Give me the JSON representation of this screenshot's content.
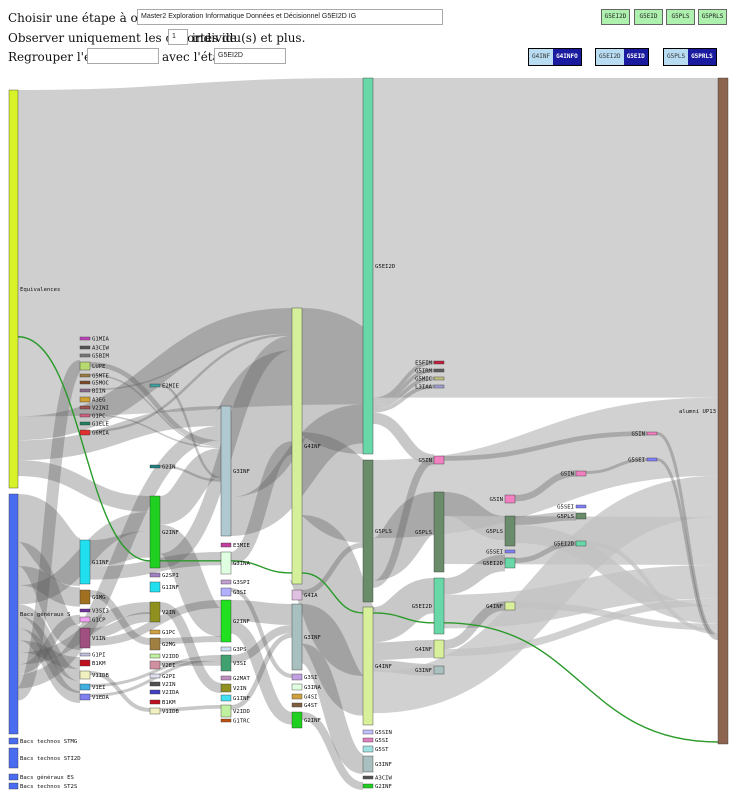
{
  "controls": {
    "step_label": "Choisir une étape à observer :",
    "step_value": "Master2 Exploration Informatique Données et Décisionnel G5EI2D IG",
    "cohort_label_before": "Observer uniquement les cohortes de",
    "cohort_value": "1",
    "cohort_label_after": "individu(s) et plus.",
    "group_label": "Regrouper l'étape",
    "group_value": "",
    "with_label": "avec l'étape",
    "with_value": "G5EI2D"
  },
  "step_buttons": [
    "G5EI2D",
    "G5EID",
    "G5PLS",
    "G5PRLS"
  ],
  "pairs": [
    {
      "a": "G4INF",
      "b": "G4INFO"
    },
    {
      "a": "G5EI2D",
      "b": "G5EID"
    },
    {
      "a": "G5PLS",
      "b": "G5PRLS"
    }
  ],
  "nodes": [
    {
      "id": "equiv",
      "label": "Equivalences",
      "color": "#d8f22a"
    },
    {
      "id": "bgen",
      "label": "Bacs généraux S",
      "color": "#4a6cf0"
    },
    {
      "id": "btst",
      "label": "Bacs technos STMG",
      "color": "#4a6cf0"
    },
    {
      "id": "bsti",
      "label": "Bacs technos STI2D",
      "color": "#4a6cf0"
    },
    {
      "id": "bes",
      "label": "Bacs généraux ES",
      "color": "#4a6cf0"
    },
    {
      "id": "bst2s",
      "label": "Bacs technos ST2S",
      "color": "#4a6cf0"
    },
    {
      "id": "c1a",
      "label": "G1MIA",
      "color": "#c040c0"
    },
    {
      "id": "c1b",
      "label": "A3CIW",
      "color": "#555555"
    },
    {
      "id": "c1c",
      "label": "G5BIM",
      "color": "#777777"
    },
    {
      "id": "c1d",
      "label": "LUPE",
      "color": "#b8d870"
    },
    {
      "id": "c1e",
      "label": "G5MTE",
      "color": "#9a7a40"
    },
    {
      "id": "c1f",
      "label": "G5MOC",
      "color": "#7a4a2a"
    },
    {
      "id": "c1g",
      "label": "BIIN",
      "color": "#8a6a8a"
    },
    {
      "id": "c1h",
      "label": "A3EG",
      "color": "#d0a030"
    },
    {
      "id": "c1i",
      "label": "V2INI",
      "color": "#a05050"
    },
    {
      "id": "c1j",
      "label": "G1PC",
      "color": "#d06080"
    },
    {
      "id": "c1k",
      "label": "G1ELE",
      "color": "#208060"
    },
    {
      "id": "c1l",
      "label": "G6MIA",
      "color": "#e03030"
    },
    {
      "id": "c1m",
      "label": "G1INF",
      "color": "#20e0f0"
    },
    {
      "id": "c1n",
      "label": "G1MG",
      "color": "#a07020"
    },
    {
      "id": "c1o",
      "label": "V3SI3",
      "color": "#7030a0"
    },
    {
      "id": "c1p",
      "label": "G1CP",
      "color": "#f0a0f0"
    },
    {
      "id": "c1q",
      "label": "V1IN",
      "color": "#a05080"
    },
    {
      "id": "c1r",
      "label": "G1PI",
      "color": "#c0c0e0"
    },
    {
      "id": "c1s",
      "label": "B1KM",
      "color": "#c01020"
    },
    {
      "id": "c1t",
      "label": "V1IDB",
      "color": "#f0f0c0"
    },
    {
      "id": "c1u",
      "label": "V1EI",
      "color": "#40b0e0"
    },
    {
      "id": "c1v",
      "label": "V1EDA",
      "color": "#8080f0"
    },
    {
      "id": "c2a",
      "label": "E2MIE",
      "color": "#40a0a0"
    },
    {
      "id": "c2b",
      "label": "G2IN",
      "color": "#208080"
    },
    {
      "id": "c2c",
      "label": "G2INF",
      "color": "#20d020"
    },
    {
      "id": "c2d",
      "label": "G2SPI",
      "color": "#a080c0"
    },
    {
      "id": "c2e",
      "label": "G1INF",
      "color": "#20e0f0"
    },
    {
      "id": "c2f",
      "label": "V2IN",
      "color": "#909020"
    },
    {
      "id": "c2g",
      "label": "G1PC",
      "color": "#d0a040"
    },
    {
      "id": "c2h",
      "label": "G2MG",
      "color": "#a08040"
    },
    {
      "id": "c2i",
      "label": "V2IDD",
      "color": "#c0f0a0"
    },
    {
      "id": "c2j",
      "label": "V2EI",
      "color": "#d090a0"
    },
    {
      "id": "c2k",
      "label": "G2PI",
      "color": "#e0e0f0"
    },
    {
      "id": "c2l",
      "label": "V2IN",
      "color": "#505050"
    },
    {
      "id": "c2m",
      "label": "V2IDA",
      "color": "#4040c0"
    },
    {
      "id": "c2n",
      "label": "B1KM",
      "color": "#c01020"
    },
    {
      "id": "c2o",
      "label": "V1IDB",
      "color": "#f0f0c0"
    },
    {
      "id": "c3a",
      "label": "G3INF",
      "color": "#b0c8d0"
    },
    {
      "id": "c3b",
      "label": "E3MIE",
      "color": "#c040a0"
    },
    {
      "id": "c3c",
      "label": "G3INA",
      "color": "#e0ffe0"
    },
    {
      "id": "c3d",
      "label": "G3SPI",
      "color": "#c0a0d0"
    },
    {
      "id": "c3e",
      "label": "G3SI",
      "color": "#b0b0ff"
    },
    {
      "id": "c3f",
      "label": "G2INF",
      "color": "#20e020"
    },
    {
      "id": "c3g",
      "label": "G3PS",
      "color": "#d0e0f0"
    },
    {
      "id": "c3h",
      "label": "V3SI",
      "color": "#40a070"
    },
    {
      "id": "c3i",
      "label": "G2MAT",
      "color": "#c090c0"
    },
    {
      "id": "c3j",
      "label": "V2IN",
      "color": "#909020"
    },
    {
      "id": "c3k",
      "label": "G1INF",
      "color": "#40e0f0"
    },
    {
      "id": "c3l",
      "label": "V2IDD",
      "color": "#c0f0a0"
    },
    {
      "id": "c3m",
      "label": "G1TRC",
      "color": "#c05010"
    },
    {
      "id": "c4a",
      "label": "G4INF",
      "color": "#d4f09a"
    },
    {
      "id": "c4b",
      "label": "G4IA",
      "color": "#e0c0e0"
    },
    {
      "id": "c4c",
      "label": "G3INF",
      "color": "#a8c0c0"
    },
    {
      "id": "c4d",
      "label": "G3SI",
      "color": "#c0a0e0"
    },
    {
      "id": "c4e",
      "label": "G3INA",
      "color": "#e0ffe0"
    },
    {
      "id": "c4f",
      "label": "G4SI",
      "color": "#d0a040"
    },
    {
      "id": "c4g",
      "label": "G4ST",
      "color": "#806040"
    },
    {
      "id": "c4h",
      "label": "G2INF",
      "color": "#20d020"
    },
    {
      "id": "c5a",
      "label": "G5EI2D",
      "color": "#68d8a8"
    },
    {
      "id": "c5b",
      "label": "G5PLS",
      "color": "#6a8c6a"
    },
    {
      "id": "c5c",
      "label": "G4INF",
      "color": "#d8f09a"
    },
    {
      "id": "c5d",
      "label": "G5SIN",
      "color": "#c0c0ff"
    },
    {
      "id": "c5e",
      "label": "G5SI",
      "color": "#e080c0"
    },
    {
      "id": "c5f",
      "label": "G5ST",
      "color": "#a0e0e0"
    },
    {
      "id": "c5g",
      "label": "G3INF",
      "color": "#a8c0c0"
    },
    {
      "id": "c5h",
      "label": "A3CIW",
      "color": "#555555"
    },
    {
      "id": "c5i",
      "label": "G2INF",
      "color": "#20d020"
    },
    {
      "id": "c6a",
      "label": "E5FIM",
      "color": "#c02040"
    },
    {
      "id": "c6b",
      "label": "G5IRM",
      "color": "#606060"
    },
    {
      "id": "c6c",
      "label": "G5MIC",
      "color": "#c0c080"
    },
    {
      "id": "c6d",
      "label": "L3IAA",
      "color": "#a0a0d0"
    },
    {
      "id": "c6e",
      "label": "G5IN",
      "color": "#f080c0"
    },
    {
      "id": "c6f",
      "label": "G5PLS",
      "color": "#6a8c6a"
    },
    {
      "id": "c6g",
      "label": "G5EI2D",
      "color": "#68d8a8"
    },
    {
      "id": "c6h",
      "label": "G4INF",
      "color": "#d8f09a"
    },
    {
      "id": "c6i",
      "label": "G3INF",
      "color": "#a8c0c0"
    },
    {
      "id": "c7a",
      "label": "G5IN",
      "color": "#f080c0"
    },
    {
      "id": "c7b",
      "label": "G5PLS",
      "color": "#6a8c6a"
    },
    {
      "id": "c7c",
      "label": "G5SEI",
      "color": "#8080ff"
    },
    {
      "id": "c7d",
      "label": "G5EI2D",
      "color": "#68d8a8"
    },
    {
      "id": "c7e",
      "label": "G4INF",
      "color": "#d8f09a"
    },
    {
      "id": "c8a",
      "label": "G5IN",
      "color": "#f080c0"
    },
    {
      "id": "c8b",
      "label": "G5SEI",
      "color": "#8080ff"
    },
    {
      "id": "c8c",
      "label": "G5PLS",
      "color": "#6a8c6a"
    },
    {
      "id": "c8d",
      "label": "G5EI2D",
      "color": "#68d8a8"
    },
    {
      "id": "c9a",
      "label": "G5IN",
      "color": "#f080c0"
    },
    {
      "id": "c9b",
      "label": "G5SEI",
      "color": "#8080ff"
    },
    {
      "id": "alumni",
      "label": "alumni UP13",
      "color": "#8c6450"
    }
  ]
}
